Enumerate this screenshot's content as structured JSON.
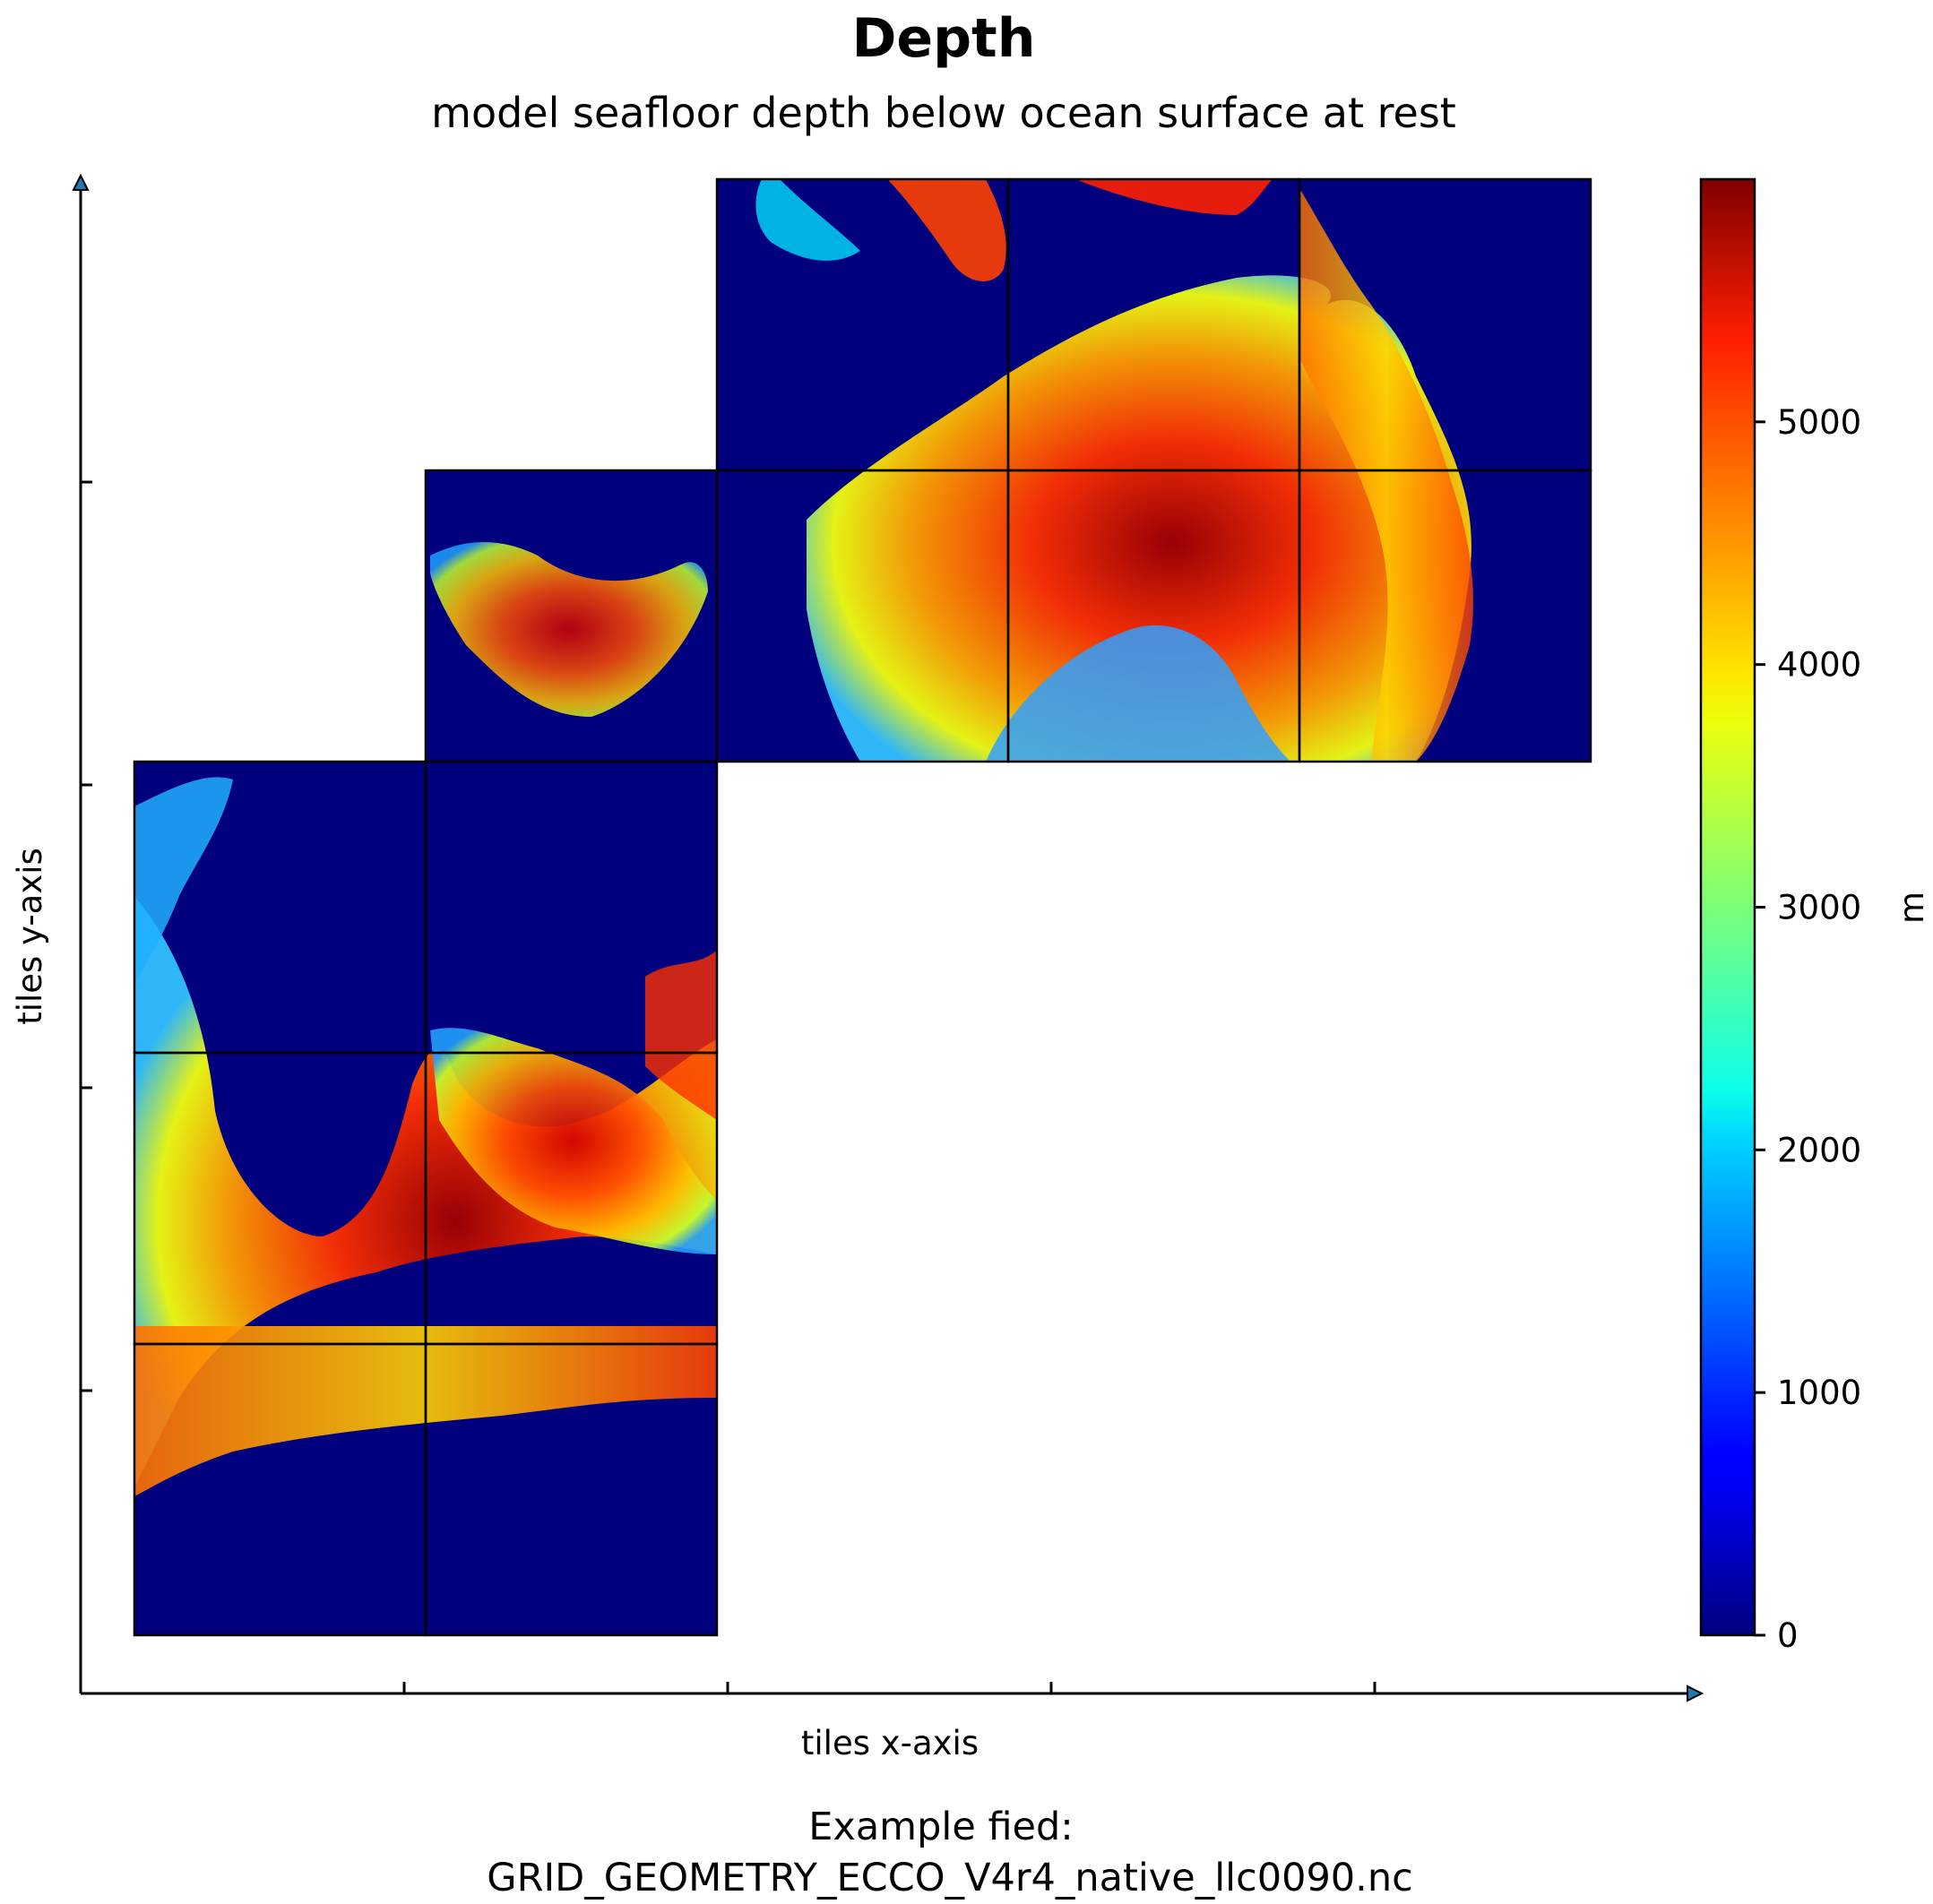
{
  "chart_data": {
    "type": "heatmap",
    "title": "Depth",
    "subtitle": "model seafloor depth below ocean surface at rest",
    "xlabel": "tiles x-axis",
    "ylabel": "tiles y-axis",
    "colorbar": {
      "label": "m",
      "colormap": "jet",
      "range": [
        0,
        6000
      ],
      "ticks": [
        0,
        1000,
        2000,
        3000,
        4000,
        5000
      ],
      "tick_labels": [
        "0",
        "1000",
        "2000",
        "3000",
        "4000",
        "5000"
      ]
    },
    "tiles_grid": {
      "cols": 5,
      "rows": 5
    },
    "tiles": [
      {
        "col": 0,
        "row": 0
      },
      {
        "col": 1,
        "row": 0
      },
      {
        "col": 0,
        "row": 1
      },
      {
        "col": 1,
        "row": 1
      },
      {
        "col": 0,
        "row": 2
      },
      {
        "col": 1,
        "row": 2
      },
      {
        "col": 1,
        "row": 3
      },
      {
        "col": 2,
        "row": 3
      },
      {
        "col": 3,
        "row": 3
      },
      {
        "col": 4,
        "row": 3
      },
      {
        "col": 2,
        "row": 4
      },
      {
        "col": 3,
        "row": 4
      },
      {
        "col": 4,
        "row": 4
      }
    ],
    "caption_lines": [
      "Example fied:",
      "GRID_GEOMETRY_ECCO_V4r4_native_llc0090.nc"
    ],
    "grid": false,
    "legend": "colorbar-right"
  },
  "colors": {
    "land": "#00007f",
    "axis": "#000000",
    "arrow": "#1f77b4"
  }
}
